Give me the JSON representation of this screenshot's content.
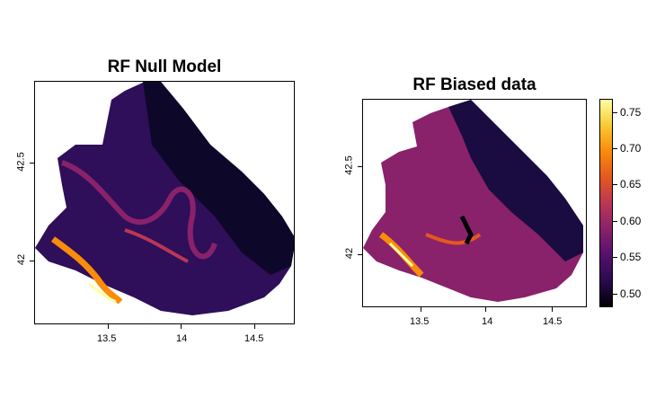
{
  "panels": [
    {
      "title": "RF Null Model",
      "x_ticks": [
        "13.5",
        "14",
        "14.5"
      ],
      "y_ticks": [
        "42",
        "42.5"
      ]
    },
    {
      "title": "RF Biased data",
      "x_ticks": [
        "13.5",
        "14",
        "14.5"
      ],
      "y_ticks": [
        "42",
        "42.5"
      ]
    }
  ],
  "colorbar": {
    "labels": [
      "0.75",
      "0.70",
      "0.65",
      "0.60",
      "0.55",
      "0.50"
    ],
    "range": [
      0.48,
      0.77
    ],
    "colors": [
      "#000004",
      "#2a0b4f",
      "#56106e",
      "#89226a",
      "#bb3754",
      "#e4581f",
      "#f98c0a",
      "#f9c932",
      "#fcffa4"
    ]
  }
}
